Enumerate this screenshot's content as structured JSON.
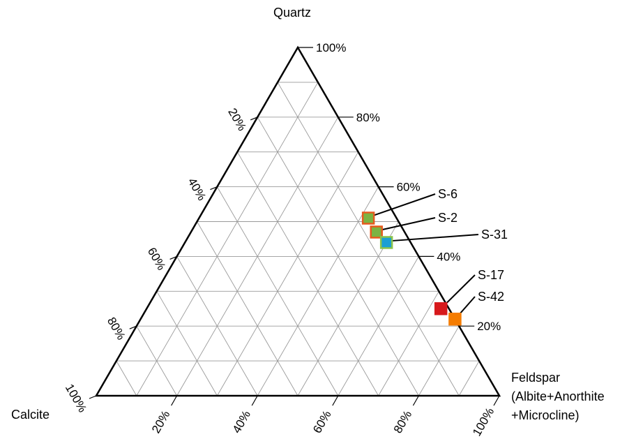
{
  "chart_data": {
    "type": "scatter",
    "subtype": "ternary",
    "corners": {
      "top": {
        "label": "Quartz"
      },
      "left": {
        "label": "Calcite"
      },
      "right": {
        "label_lines": [
          "Feldspar",
          "(Albite+Anorthite",
          "+Microcline)"
        ]
      }
    },
    "grid": true,
    "grid_step_percent": 10,
    "axes": {
      "quartz": {
        "ticks": [
          "100%",
          "80%",
          "60%",
          "40%",
          "20%"
        ],
        "values": [
          100,
          80,
          60,
          40,
          20
        ]
      },
      "calcite": {
        "ticks": [
          "20%",
          "40%",
          "60%",
          "80%",
          "100%"
        ],
        "values": [
          20,
          40,
          60,
          80,
          100
        ]
      },
      "feldspar": {
        "ticks": [
          "20%",
          "40%",
          "60%",
          "80%",
          "100%"
        ],
        "values": [
          20,
          40,
          60,
          80,
          100
        ]
      }
    },
    "points": [
      {
        "label": "S-6",
        "quartz": 51,
        "feldspar": 42,
        "calcite": 7,
        "fill": "#7cb342",
        "border": "#e65a1e"
      },
      {
        "label": "S-2",
        "quartz": 47,
        "feldspar": 46,
        "calcite": 7,
        "fill": "#7cb342",
        "border": "#e65a1e"
      },
      {
        "label": "S-31",
        "quartz": 44,
        "feldspar": 50,
        "calcite": 6,
        "fill": "#1a9fd4",
        "border": "#8bc34a"
      },
      {
        "label": "S-17",
        "quartz": 25,
        "feldspar": 73,
        "calcite": 2,
        "fill": "#d7191c",
        "border": "#d7191c"
      },
      {
        "label": "S-42",
        "quartz": 22,
        "feldspar": 78,
        "calcite": 0,
        "fill": "#f57c00",
        "border": "#f57c00"
      }
    ]
  }
}
